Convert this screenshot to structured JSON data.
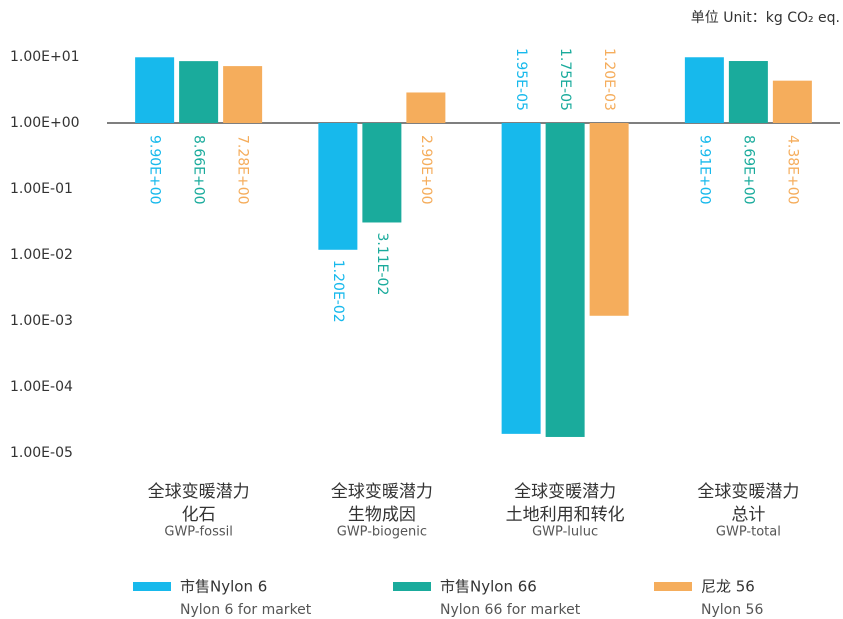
{
  "chart_data": {
    "type": "bar",
    "unit": "单位 Unit：kg CO₂ eq.",
    "log_scale": true,
    "baseline": 1,
    "categories": [
      {
        "zh": [
          "全球变暖潜力",
          "化石"
        ],
        "en": "GWP-fossil"
      },
      {
        "zh": [
          "全球变暖潜力",
          "生物成因"
        ],
        "en": "GWP-biogenic"
      },
      {
        "zh": [
          "全球变暖潜力",
          "土地利用和转化"
        ],
        "en": "GWP-luluc"
      },
      {
        "zh": [
          "全球变暖潜力",
          "总计"
        ],
        "en": "GWP-total"
      }
    ],
    "series": [
      {
        "name": "市售Nylon 6",
        "name_en": "Nylon 6 for market",
        "color": "#17b9ec",
        "values": [
          9.9,
          0.012,
          1.95e-05,
          9.91
        ],
        "value_labels": [
          "9.90E+00",
          "1.20E-02",
          "1.95E-05",
          "9.91E+00"
        ]
      },
      {
        "name": "市售Nylon 66",
        "name_en": "Nylon 66 for market",
        "color": "#1aab9c",
        "values": [
          8.66,
          0.0311,
          1.75e-05,
          8.69
        ],
        "value_labels": [
          "8.66E+00",
          "3.11E-02",
          "1.75E-05",
          "8.69E+00"
        ]
      },
      {
        "name": "尼龙 56",
        "name_en": "Nylon 56",
        "color": "#f5ad5c",
        "values": [
          7.28,
          2.9,
          0.0012,
          4.38
        ],
        "value_labels": [
          "7.28E+00",
          "2.90E+00",
          "1.20E-03",
          "4.38E+00"
        ]
      }
    ],
    "ylim": [
      1e-05,
      10
    ],
    "yticks": [
      {
        "value": 10,
        "label": "1.00E+01"
      },
      {
        "value": 1,
        "label": "1.00E+00"
      },
      {
        "value": 0.1,
        "label": "1.00E-01"
      },
      {
        "value": 0.01,
        "label": "1.00E-02"
      },
      {
        "value": 0.001,
        "label": "1.00E-03"
      },
      {
        "value": 0.0001,
        "label": "1.00E-04"
      },
      {
        "value": 1e-05,
        "label": "1.00E-05"
      }
    ]
  }
}
